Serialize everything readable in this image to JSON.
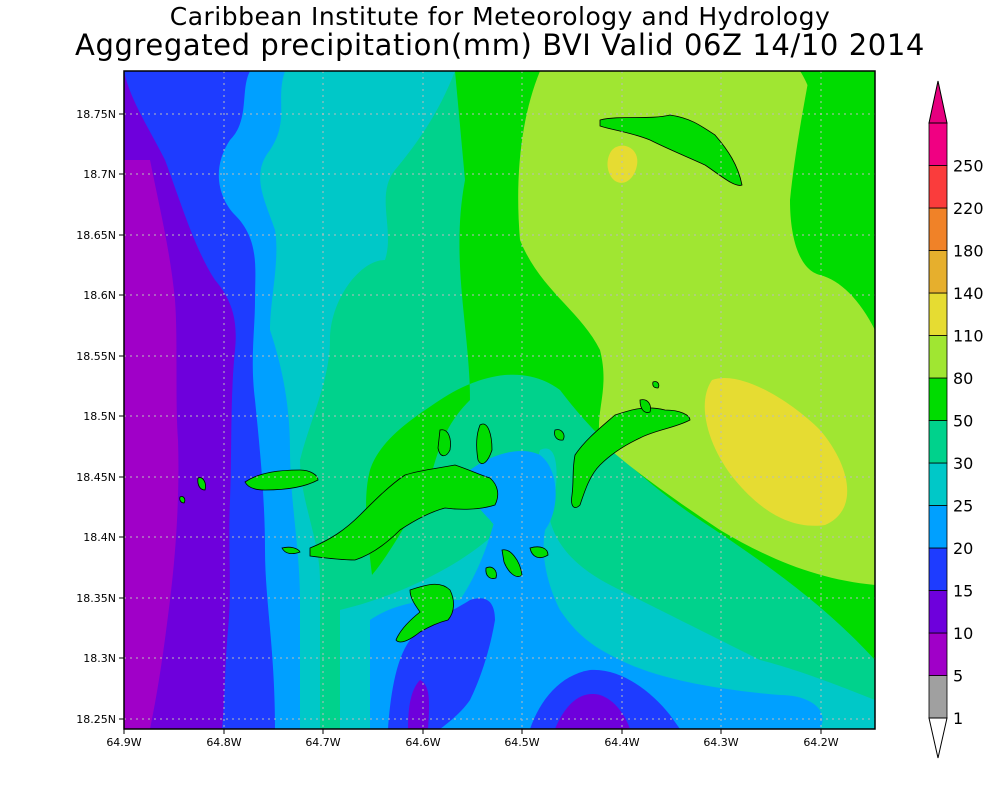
{
  "header": {
    "title": "Caribbean Institute for Meteorology and Hydrology",
    "subtitle": "Aggregated precipitation(mm) BVI Valid 06Z 14/10 2014"
  },
  "map": {
    "lon_range": [
      -64.9,
      -64.14
    ],
    "lat_range": [
      18.245,
      18.79
    ],
    "lon_ticks": [
      "64.9W",
      "64.8W",
      "64.7W",
      "64.6W",
      "64.5W",
      "64.4W",
      "64.3W",
      "64.2W"
    ],
    "lat_ticks": [
      "18.75N",
      "18.7N",
      "18.65N",
      "18.6N",
      "18.55N",
      "18.5N",
      "18.45N",
      "18.4N",
      "18.35N",
      "18.3N",
      "18.25N"
    ],
    "grid": true,
    "colors": {
      "5-10": "#a000c8",
      "10-15": "#6e00dc",
      "15-20": "#1e3cff",
      "20-25": "#00a0ff",
      "25-30": "#00c8c8",
      "30-50": "#00d28c",
      "50-80": "#00dc00",
      "80-110": "#a0e632",
      "110-140": "#e6dc32"
    }
  },
  "colorbar": {
    "levels": [
      "1",
      "5",
      "10",
      "15",
      "20",
      "25",
      "30",
      "50",
      "80",
      "110",
      "140",
      "180",
      "220",
      "250"
    ],
    "colors": [
      "#a0a0a0",
      "#a000c8",
      "#6e00dc",
      "#1e3cff",
      "#00a0ff",
      "#00c8c8",
      "#00d28c",
      "#00dc00",
      "#a0e632",
      "#e6dc32",
      "#e6af2d",
      "#f08228",
      "#fa3c3c",
      "#f00082"
    ],
    "under_color": "#ffffff",
    "over_color": "#e6007f"
  }
}
